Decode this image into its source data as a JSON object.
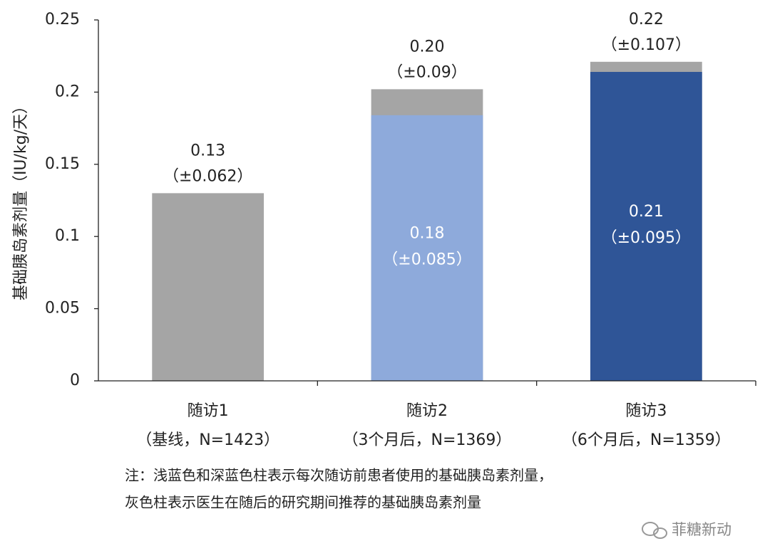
{
  "chart_data": {
    "type": "bar",
    "y_label": "基础胰岛素剂量（IU/kg/天）",
    "categories": [
      "随访1",
      "随访2",
      "随访3"
    ],
    "category_sublabels": [
      "（基线，N=1423）",
      "（3个月后，N=1369）",
      "（6个月后，N=1359）"
    ],
    "series": [
      {
        "color": "#a5a5a5",
        "values": [
          0.13,
          0.202,
          0.221
        ],
        "value_labels": [
          "0.13",
          "0.20",
          "0.22"
        ],
        "error_labels": [
          "（±0.062）",
          "（±0.09）",
          "（±0.107）"
        ]
      },
      {
        "colors": [
          null,
          "#8eaadb",
          "#2f5597"
        ],
        "values": [
          null,
          0.184,
          0.214
        ],
        "value_labels": [
          null,
          "0.18",
          "0.21"
        ],
        "error_labels": [
          null,
          "（±0.085）",
          "（±0.095）"
        ]
      }
    ],
    "ylim": [
      0,
      0.25
    ],
    "yticks": [
      0,
      0.05,
      0.1,
      0.15,
      0.2,
      0.25
    ],
    "note": [
      "注：浅蓝色和深蓝色柱表示每次随访前患者使用的基础胰岛素剂量，",
      "灰色柱表示医生在随后的研究期间推荐的基础胰岛素剂量"
    ],
    "watermark": "菲糖新动"
  }
}
